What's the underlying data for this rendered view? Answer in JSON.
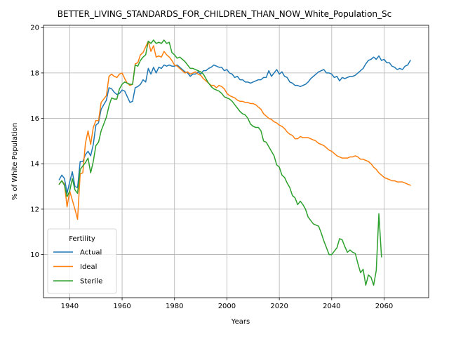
{
  "chart_data": {
    "type": "line",
    "title": "BETTER_LIVING_STANDARDS_FOR_CHILDREN_THAN_NOW_White_Population_Sc",
    "xlabel": "Years",
    "ylabel": "% of White Population",
    "xlim": [
      1930,
      2077
    ],
    "ylim": [
      8.1,
      20.1
    ],
    "xticks": [
      1940,
      1960,
      1980,
      2000,
      2020,
      2040,
      2060
    ],
    "yticks": [
      10,
      12,
      14,
      16,
      18,
      20
    ],
    "grid": true,
    "legend": {
      "title": "Fertility",
      "placement": "lower-left"
    },
    "series": [
      {
        "name": "Actual",
        "color": "#1f77b4",
        "x": [
          1936,
          1937,
          1938,
          1939,
          1940,
          1941,
          1942,
          1943,
          1944,
          1945,
          1946,
          1947,
          1948,
          1949,
          1950,
          1951,
          1952,
          1953,
          1954,
          1955,
          1956,
          1957,
          1958,
          1959,
          1960,
          1961,
          1962,
          1963,
          1964,
          1965,
          1966,
          1967,
          1968,
          1969,
          1970,
          1971,
          1972,
          1973,
          1974,
          1975,
          1976,
          1977,
          1978,
          1979,
          1980,
          1981,
          1982,
          1983,
          1984,
          1985,
          1986,
          1987,
          1988,
          1989,
          1990,
          1991,
          1992,
          1993,
          1994,
          1995,
          1996,
          1997,
          1998,
          1999,
          2000,
          2001,
          2002,
          2003,
          2004,
          2005,
          2006,
          2007,
          2008,
          2009,
          2010,
          2011,
          2012,
          2013,
          2014,
          2015,
          2016,
          2017,
          2018,
          2019,
          2020,
          2021,
          2022,
          2023,
          2024,
          2025,
          2026,
          2027,
          2028,
          2029,
          2030,
          2031,
          2032,
          2033,
          2034,
          2035,
          2036,
          2037,
          2038,
          2039,
          2040,
          2041,
          2042,
          2043,
          2044,
          2045,
          2046,
          2047,
          2048,
          2049,
          2050,
          2051,
          2052,
          2053,
          2054,
          2055,
          2056,
          2057,
          2058,
          2059,
          2060,
          2061,
          2062,
          2063,
          2064,
          2065,
          2066,
          2067,
          2068,
          2069,
          2070
        ],
        "y": [
          13.3,
          13.5,
          13.35,
          12.7,
          13.2,
          13.65,
          13.0,
          12.95,
          14.1,
          14.1,
          14.4,
          14.55,
          14.35,
          14.85,
          15.7,
          15.8,
          16.4,
          16.6,
          16.8,
          17.35,
          17.3,
          17.15,
          17.05,
          17.1,
          17.25,
          17.2,
          16.95,
          16.7,
          16.75,
          17.35,
          17.4,
          17.5,
          17.7,
          17.6,
          18.2,
          17.95,
          18.25,
          18.0,
          18.25,
          18.2,
          18.35,
          18.3,
          18.35,
          18.3,
          18.3,
          18.35,
          18.25,
          18.15,
          18.05,
          18.0,
          17.85,
          17.95,
          17.95,
          18.05,
          17.95,
          18.1,
          18.1,
          18.2,
          18.25,
          18.35,
          18.3,
          18.25,
          18.25,
          18.1,
          18.15,
          18.0,
          17.95,
          17.8,
          17.85,
          17.7,
          17.7,
          17.6,
          17.6,
          17.55,
          17.6,
          17.65,
          17.7,
          17.7,
          17.8,
          17.8,
          18.1,
          17.85,
          18.0,
          18.15,
          17.95,
          18.05,
          17.85,
          17.8,
          17.6,
          17.55,
          17.45,
          17.45,
          17.4,
          17.45,
          17.5,
          17.6,
          17.75,
          17.85,
          17.95,
          18.05,
          18.1,
          18.15,
          18.0,
          18.0,
          17.95,
          17.8,
          17.85,
          17.65,
          17.8,
          17.75,
          17.8,
          17.85,
          17.85,
          17.9,
          18.0,
          18.1,
          18.2,
          18.4,
          18.55,
          18.6,
          18.7,
          18.6,
          18.75,
          18.55,
          18.6,
          18.45,
          18.45,
          18.3,
          18.25,
          18.15,
          18.2,
          18.15,
          18.3,
          18.35,
          18.55
        ]
      },
      {
        "name": "Ideal",
        "color": "#ff7f0e",
        "x": [
          1936,
          1937,
          1938,
          1939,
          1940,
          1941,
          1942,
          1943,
          1944,
          1945,
          1946,
          1947,
          1948,
          1949,
          1950,
          1951,
          1952,
          1953,
          1954,
          1955,
          1956,
          1957,
          1958,
          1959,
          1960,
          1961,
          1962,
          1963,
          1964,
          1965,
          1966,
          1967,
          1968,
          1969,
          1970,
          1971,
          1972,
          1973,
          1974,
          1975,
          1976,
          1977,
          1978,
          1979,
          1980,
          1981,
          1982,
          1983,
          1984,
          1985,
          1986,
          1987,
          1988,
          1989,
          1990,
          1991,
          1992,
          1993,
          1994,
          1995,
          1996,
          1997,
          1998,
          1999,
          2000,
          2001,
          2002,
          2003,
          2004,
          2005,
          2006,
          2007,
          2008,
          2009,
          2010,
          2011,
          2012,
          2013,
          2014,
          2015,
          2016,
          2017,
          2018,
          2019,
          2020,
          2021,
          2022,
          2023,
          2024,
          2025,
          2026,
          2027,
          2028,
          2029,
          2030,
          2031,
          2032,
          2033,
          2034,
          2035,
          2036,
          2037,
          2038,
          2039,
          2040,
          2041,
          2042,
          2043,
          2044,
          2045,
          2046,
          2047,
          2048,
          2049,
          2050,
          2051,
          2052,
          2053,
          2054,
          2055,
          2056,
          2057,
          2058,
          2059,
          2060,
          2061,
          2062,
          2063,
          2064,
          2065,
          2066,
          2067,
          2068,
          2069,
          2070
        ],
        "y": [
          13.1,
          13.25,
          13.1,
          12.1,
          12.8,
          12.4,
          12.0,
          11.55,
          13.55,
          13.6,
          14.9,
          15.45,
          14.85,
          15.6,
          15.9,
          15.9,
          16.7,
          16.85,
          17.0,
          17.85,
          17.95,
          17.85,
          17.8,
          17.95,
          18.0,
          17.75,
          17.55,
          17.45,
          17.5,
          18.4,
          18.45,
          18.8,
          18.9,
          19.15,
          19.4,
          18.95,
          19.2,
          18.7,
          18.75,
          18.7,
          18.95,
          18.8,
          18.7,
          18.55,
          18.35,
          18.3,
          18.2,
          18.1,
          18.0,
          18.05,
          17.95,
          18.0,
          18.05,
          17.95,
          17.9,
          17.75,
          17.65,
          17.55,
          17.45,
          17.45,
          17.35,
          17.45,
          17.4,
          17.3,
          17.1,
          17.0,
          16.95,
          16.9,
          16.8,
          16.75,
          16.75,
          16.7,
          16.7,
          16.65,
          16.65,
          16.6,
          16.5,
          16.4,
          16.2,
          16.1,
          16.0,
          15.95,
          15.85,
          15.8,
          15.7,
          15.65,
          15.55,
          15.4,
          15.3,
          15.25,
          15.1,
          15.1,
          15.2,
          15.15,
          15.15,
          15.15,
          15.1,
          15.05,
          15.0,
          14.9,
          14.85,
          14.8,
          14.7,
          14.6,
          14.55,
          14.45,
          14.35,
          14.3,
          14.25,
          14.25,
          14.25,
          14.3,
          14.3,
          14.35,
          14.3,
          14.2,
          14.2,
          14.15,
          14.1,
          14.0,
          13.85,
          13.75,
          13.6,
          13.5,
          13.4,
          13.35,
          13.3,
          13.25,
          13.25,
          13.2,
          13.2,
          13.2,
          13.15,
          13.1,
          13.05
        ]
      },
      {
        "name": "Sterile",
        "color": "#2ca02c",
        "x": [
          1936,
          1937,
          1938,
          1939,
          1940,
          1941,
          1942,
          1943,
          1944,
          1945,
          1946,
          1947,
          1948,
          1949,
          1950,
          1951,
          1952,
          1953,
          1954,
          1955,
          1956,
          1957,
          1958,
          1959,
          1960,
          1961,
          1962,
          1963,
          1964,
          1965,
          1966,
          1967,
          1968,
          1969,
          1970,
          1971,
          1972,
          1973,
          1974,
          1975,
          1976,
          1977,
          1978,
          1979,
          1980,
          1981,
          1982,
          1983,
          1984,
          1985,
          1986,
          1987,
          1988,
          1989,
          1990,
          1991,
          1992,
          1993,
          1994,
          1995,
          1996,
          1997,
          1998,
          1999,
          2000,
          2001,
          2002,
          2003,
          2004,
          2005,
          2006,
          2007,
          2008,
          2009,
          2010,
          2011,
          2012,
          2013,
          2014,
          2015,
          2016,
          2017,
          2018,
          2019,
          2020,
          2021,
          2022,
          2023,
          2024,
          2025,
          2026,
          2027,
          2028,
          2029,
          2030,
          2031,
          2032,
          2033,
          2034,
          2035,
          2036,
          2037,
          2038,
          2039,
          2040,
          2041,
          2042,
          2043,
          2044,
          2045,
          2046,
          2047,
          2048,
          2049,
          2050,
          2051,
          2052,
          2053,
          2054,
          2055,
          2056,
          2057,
          2058,
          2059
        ],
        "y": [
          13.1,
          13.25,
          13.05,
          12.55,
          12.8,
          13.35,
          12.85,
          12.7,
          13.75,
          13.9,
          14.05,
          14.25,
          13.6,
          14.1,
          14.8,
          14.95,
          15.45,
          15.75,
          16.05,
          16.55,
          16.9,
          16.85,
          16.85,
          17.3,
          17.5,
          17.6,
          17.55,
          17.5,
          17.5,
          18.35,
          18.3,
          18.55,
          18.7,
          18.8,
          19.4,
          19.3,
          19.45,
          19.3,
          19.35,
          19.3,
          19.45,
          19.3,
          19.35,
          18.9,
          18.8,
          18.65,
          18.7,
          18.6,
          18.5,
          18.35,
          18.2,
          18.2,
          18.15,
          18.1,
          18.05,
          17.95,
          17.75,
          17.55,
          17.4,
          17.3,
          17.25,
          17.2,
          17.1,
          16.95,
          16.9,
          16.85,
          16.75,
          16.6,
          16.45,
          16.3,
          16.2,
          16.15,
          16.0,
          15.75,
          15.65,
          15.6,
          15.6,
          15.45,
          15.0,
          14.95,
          14.75,
          14.55,
          14.35,
          13.95,
          13.85,
          13.5,
          13.4,
          13.15,
          12.95,
          12.6,
          12.5,
          12.2,
          12.35,
          12.2,
          12.0,
          11.65,
          11.5,
          11.35,
          11.3,
          11.25,
          10.95,
          10.6,
          10.3,
          10.0,
          10.0,
          10.15,
          10.3,
          10.7,
          10.65,
          10.35,
          10.1,
          10.2,
          10.1,
          10.05,
          9.6,
          9.2,
          9.35,
          8.65,
          9.1,
          9.0,
          8.65,
          9.3,
          11.8,
          9.9
        ]
      }
    ]
  }
}
